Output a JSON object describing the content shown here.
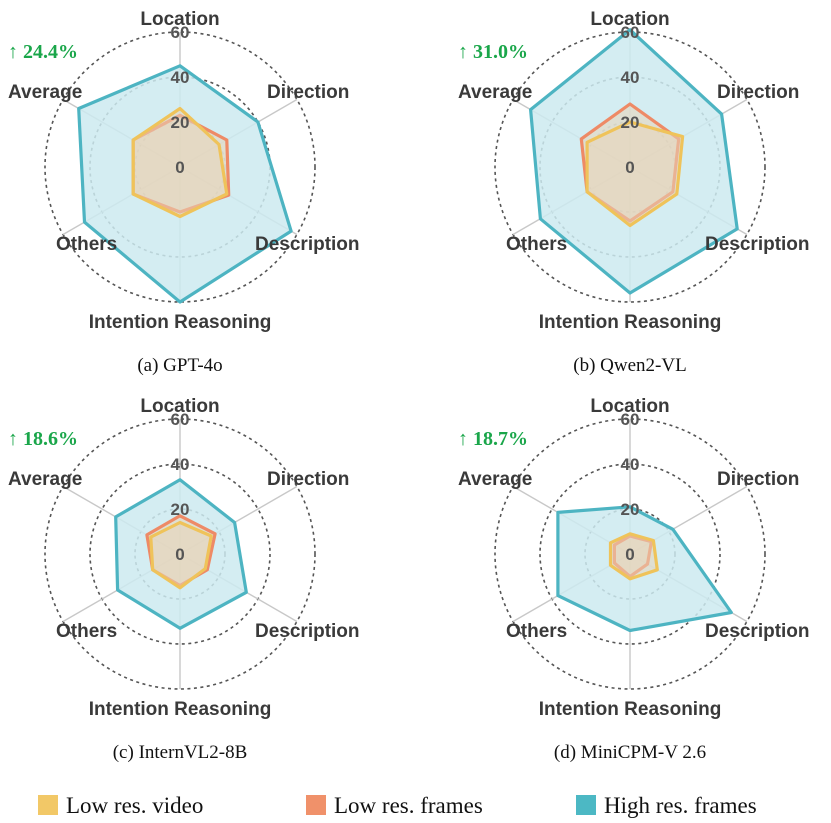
{
  "chart_data": [
    {
      "type": "radar",
      "caption": "(a) GPT-4o",
      "gain": "↑ 24.4%",
      "axes": [
        "Location",
        "Direction",
        "Description",
        "Intention Reasoning",
        "Others",
        "Average"
      ],
      "ticks": [
        "0",
        "20",
        "40",
        "60"
      ],
      "rlim": [
        0,
        60
      ],
      "series": [
        {
          "name": "Low res. video",
          "values": [
            26,
            20,
            24,
            22,
            24,
            24
          ]
        },
        {
          "name": "Low res. frames",
          "values": [
            23,
            24,
            25,
            20,
            24,
            24
          ]
        },
        {
          "name": "High res. frames",
          "values": [
            45,
            40,
            57,
            60,
            49,
            52
          ]
        }
      ]
    },
    {
      "type": "radar",
      "caption": "(b) Qwen2-VL",
      "gain": "↑ 31.0%",
      "axes": [
        "Location",
        "Direction",
        "Description",
        "Intention Reasoning",
        "Others",
        "Average"
      ],
      "ticks": [
        "0",
        "20",
        "40",
        "60"
      ],
      "rlim": [
        0,
        60
      ],
      "series": [
        {
          "name": "Low res. video",
          "values": [
            20,
            27,
            24,
            26,
            22,
            22
          ]
        },
        {
          "name": "Low res. frames",
          "values": [
            28,
            25,
            22,
            24,
            22,
            25
          ]
        },
        {
          "name": "High res. frames",
          "values": [
            61,
            47,
            55,
            56,
            46,
            51
          ]
        }
      ]
    },
    {
      "type": "radar",
      "caption": "(c) InternVL2-8B",
      "gain": "↑ 18.6%",
      "axes": [
        "Location",
        "Direction",
        "Description",
        "Intention Reasoning",
        "Others",
        "Average"
      ],
      "ticks": [
        "0",
        "20",
        "40",
        "60"
      ],
      "rlim": [
        0,
        60
      ],
      "series": [
        {
          "name": "Low res. video",
          "values": [
            14,
            16,
            13,
            15,
            14,
            15
          ]
        },
        {
          "name": "Low res. frames",
          "values": [
            17,
            18,
            14,
            14,
            14,
            17
          ]
        },
        {
          "name": "High res. frames",
          "values": [
            33,
            28,
            34,
            33,
            32,
            33
          ]
        }
      ]
    },
    {
      "type": "radar",
      "caption": "(d) MiniCPM-V 2.6",
      "gain": "↑ 18.7%",
      "axes": [
        "Location",
        "Direction",
        "Description",
        "Intention Reasoning",
        "Others",
        "Average"
      ],
      "ticks": [
        "0",
        "20",
        "40",
        "60"
      ],
      "rlim": [
        0,
        60
      ],
      "series": [
        {
          "name": "Low res. video",
          "values": [
            9,
            12,
            14,
            11,
            10,
            10
          ]
        },
        {
          "name": "Low res. frames",
          "values": [
            8,
            11,
            9,
            10,
            8,
            8
          ]
        },
        {
          "name": "High res. frames",
          "values": [
            21,
            22,
            52,
            34,
            37,
            37
          ]
        }
      ]
    }
  ],
  "legend": [
    {
      "name": "Low res. video",
      "color": "#f2c867"
    },
    {
      "name": "Low res. frames",
      "color": "#f0916a"
    },
    {
      "name": "High res. frames",
      "color": "#4cb8c4"
    }
  ],
  "colors": {
    "video_stroke": "#efc35a",
    "frames_stroke": "#ee8a66",
    "high_stroke": "#4db4c2",
    "high_fill": "#cdeaf0",
    "inner_fill": "#e8d3b8",
    "gain": "#1aa64a"
  }
}
